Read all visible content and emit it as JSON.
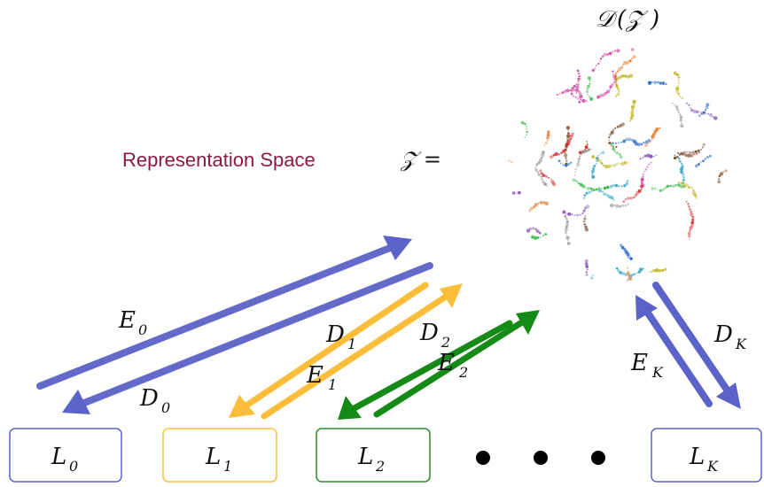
{
  "top_label": {
    "main": "𝒟",
    "paren_open": "(",
    "inner": "𝒵",
    "paren_close": ")"
  },
  "representation": {
    "text": "Representation Space",
    "symbol": "𝒵 ="
  },
  "colors": {
    "blue": "#5b63c8",
    "blue_border": "#5c63c9",
    "yellow": "#fbbd3a",
    "yellow_border": "#f7bf45",
    "green": "#168a16",
    "green_border": "#2b8a2b",
    "title_red": "#8b1b3c",
    "cluster": [
      "#d12b2b",
      "#e6762b",
      "#3aa6c4",
      "#8a5ab8",
      "#3cb84a",
      "#c2b828",
      "#d24aa0",
      "#2b6cc4",
      "#7a4a2b",
      "#9a9a9a"
    ]
  },
  "layers": [
    {
      "id": "L0",
      "base": "L",
      "sub": "0",
      "color": "blue"
    },
    {
      "id": "L1",
      "base": "L",
      "sub": "1",
      "color": "yellow"
    },
    {
      "id": "L2",
      "base": "L",
      "sub": "2",
      "color": "green"
    },
    {
      "id": "LK",
      "base": "L",
      "sub": "K",
      "color": "blue"
    }
  ],
  "ellipsis_count": 3,
  "arrows": {
    "E0": {
      "base": "E",
      "sub": "0"
    },
    "D0": {
      "base": "D",
      "sub": "0"
    },
    "D1": {
      "base": "D",
      "sub": "1"
    },
    "E1": {
      "base": "E",
      "sub": "1"
    },
    "D2": {
      "base": "D",
      "sub": "2"
    },
    "E2": {
      "base": "E",
      "sub": "2"
    },
    "EK": {
      "base": "E",
      "sub": "K"
    },
    "DK": {
      "base": "D",
      "sub": "K"
    }
  }
}
